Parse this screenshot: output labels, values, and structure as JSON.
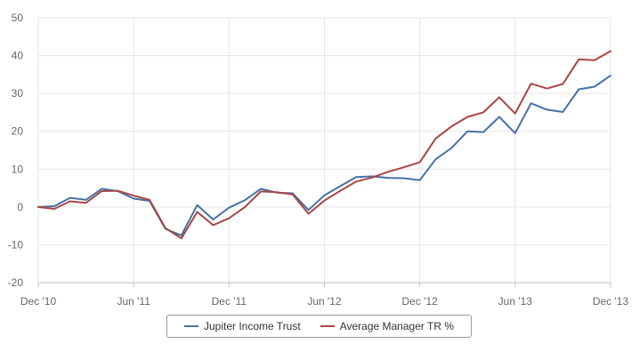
{
  "chart_data": {
    "type": "line",
    "x": [
      "Dec '10",
      "Jan '11",
      "Feb '11",
      "Mar '11",
      "Apr '11",
      "May '11",
      "Jun '11",
      "Jul '11",
      "Aug '11",
      "Sep '11",
      "Oct '11",
      "Nov '11",
      "Dec '11",
      "Jan '12",
      "Feb '12",
      "Mar '12",
      "Apr '12",
      "May '12",
      "Jun '12",
      "Jul '12",
      "Aug '12",
      "Sep '12",
      "Oct '12",
      "Nov '12",
      "Dec '12",
      "Jan '13",
      "Feb '13",
      "Mar '13",
      "Apr '13",
      "May '13",
      "Jun '13",
      "Jul '13",
      "Aug '13",
      "Sep '13",
      "Oct '13",
      "Nov '13",
      "Dec '13"
    ],
    "xtick_labels": [
      "Dec '10",
      "Jun '11",
      "Dec '11",
      "Jun '12",
      "Dec '12",
      "Jun '13",
      "Dec '13"
    ],
    "ylim": [
      -20,
      50
    ],
    "yticks": [
      -20,
      -10,
      0,
      10,
      20,
      30,
      40,
      50
    ],
    "grid": true,
    "legend_position": "bottom",
    "series": [
      {
        "name": "Jupiter Income Trust",
        "color": "#4572a7",
        "values": [
          0,
          0.2,
          2.4,
          1.9,
          4.8,
          4.2,
          2.2,
          1.6,
          -5.8,
          -7.5,
          0.5,
          -3.3,
          -0.2,
          1.8,
          4.8,
          3.8,
          3.6,
          -0.8,
          3.1,
          5.5,
          7.9,
          8.1,
          7.7,
          7.6,
          7.1,
          12.6,
          15.6,
          20,
          19.8,
          23.8,
          19.5,
          27.4,
          25.7,
          25.1,
          31.1,
          31.8,
          34.7
        ]
      },
      {
        "name": "Average Manager TR %",
        "color": "#aa4643",
        "values": [
          0,
          -0.5,
          1.5,
          1.1,
          4.2,
          4.3,
          3,
          1.9,
          -5.6,
          -8.3,
          -1.3,
          -4.8,
          -3,
          0,
          4.1,
          3.9,
          3.3,
          -1.8,
          1.7,
          4.3,
          6.7,
          7.8,
          9.3,
          10.5,
          11.8,
          18.1,
          21.3,
          23.8,
          25,
          29,
          24.7,
          32.6,
          31.3,
          32.5,
          39,
          38.8,
          41.2
        ]
      }
    ]
  }
}
